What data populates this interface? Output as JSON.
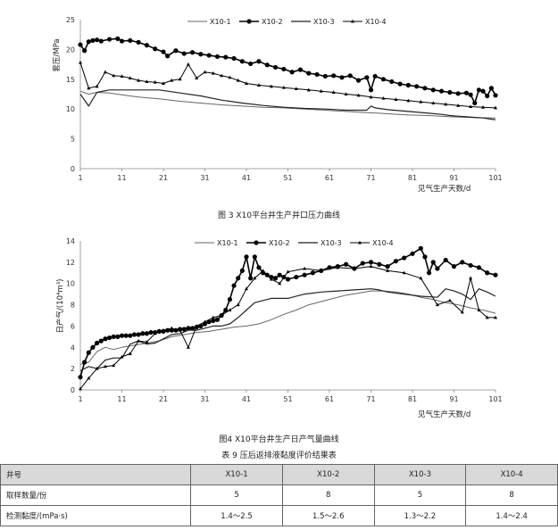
{
  "figure3": {
    "caption": "图 3 X10平台井生产井口压力曲线",
    "chart_data": {
      "type": "line",
      "ylabel": "套压/MPa",
      "xlabel": "见气生产天数/d",
      "ylim": [
        0,
        25
      ],
      "yticks": [
        0,
        5,
        10,
        15,
        20,
        25
      ],
      "xticks": [
        1,
        11,
        21,
        31,
        41,
        51,
        61,
        71,
        81,
        91,
        101
      ],
      "legend": [
        "X10-1",
        "X10-2",
        "X10-3",
        "X10-4"
      ],
      "series": [
        {
          "name": "X10-1",
          "marker": "none",
          "x": [
            1,
            3,
            5,
            8,
            11,
            15,
            20,
            25,
            30,
            35,
            40,
            45,
            50,
            55,
            60,
            65,
            70,
            73,
            75,
            80,
            85,
            90,
            95,
            101
          ],
          "values": [
            13,
            12.5,
            12.8,
            12.7,
            12.4,
            12,
            11.7,
            11.3,
            11,
            10.7,
            10.5,
            10.3,
            10.2,
            10,
            9.8,
            9.6,
            9.4,
            9.3,
            9.2,
            9,
            8.9,
            8.7,
            8.6,
            8.5
          ]
        },
        {
          "name": "X10-2",
          "marker": "circle",
          "x": [
            1,
            2,
            3,
            4,
            5,
            6,
            8,
            10,
            11,
            13,
            15,
            17,
            19,
            21,
            22,
            24,
            26,
            28,
            30,
            32,
            34,
            36,
            38,
            40,
            42,
            44,
            46,
            48,
            50,
            52,
            54,
            56,
            58,
            60,
            62,
            64,
            66,
            68,
            70,
            71,
            72,
            74,
            76,
            78,
            80,
            82,
            84,
            86,
            88,
            90,
            92,
            94,
            95,
            96,
            97,
            98,
            99,
            100,
            101
          ],
          "values": [
            20.8,
            19.8,
            21.3,
            21.5,
            21.6,
            21.4,
            21.7,
            21.8,
            21.4,
            21.5,
            21.2,
            20.7,
            20.1,
            19.6,
            18.9,
            19.8,
            19.3,
            19.5,
            19.2,
            19,
            18.8,
            18.7,
            18.5,
            18,
            17.6,
            18,
            17.4,
            17,
            16.7,
            16.2,
            16.6,
            16,
            15.8,
            15.5,
            15.6,
            15.3,
            15.6,
            14.8,
            15.3,
            13.2,
            15.5,
            15,
            14.6,
            14.2,
            14,
            13.8,
            13.5,
            13.2,
            13,
            12.8,
            12.6,
            12.7,
            12.4,
            11,
            13.2,
            13,
            12.2,
            13.5,
            12.3
          ]
        },
        {
          "name": "X10-3",
          "marker": "none",
          "x": [
            1,
            3,
            5,
            8,
            11,
            15,
            20,
            25,
            30,
            35,
            40,
            45,
            50,
            55,
            60,
            65,
            70,
            71,
            72,
            75,
            80,
            85,
            88,
            90,
            92,
            94,
            96,
            98,
            100,
            101
          ],
          "values": [
            12.5,
            10.5,
            12.8,
            13.2,
            13.2,
            13.2,
            13.2,
            12.7,
            12.2,
            11.5,
            11,
            10.6,
            10.3,
            10.1,
            10,
            9.8,
            9.8,
            10.5,
            10.2,
            9.9,
            9.6,
            9.3,
            9.1,
            8.9,
            8.8,
            8.7,
            8.6,
            8.5,
            8.3,
            8.2
          ]
        },
        {
          "name": "X10-4",
          "marker": "triangle",
          "x": [
            1,
            3,
            5,
            7,
            9,
            11,
            13,
            15,
            17,
            19,
            21,
            23,
            25,
            27,
            29,
            31,
            33,
            35,
            37,
            39,
            41,
            44,
            47,
            50,
            53,
            56,
            59,
            62,
            65,
            68,
            71,
            74,
            77,
            80,
            83,
            86,
            89,
            92,
            95,
            98,
            101
          ],
          "values": [
            17.8,
            13.5,
            13.8,
            16.2,
            15.6,
            15.5,
            15.2,
            14.8,
            14.6,
            14.5,
            14.3,
            14.8,
            15,
            17.5,
            15.2,
            16.2,
            16,
            15.6,
            15.3,
            14.8,
            14.3,
            14,
            13.8,
            13.6,
            13.4,
            13.2,
            13,
            12.8,
            12.5,
            12.3,
            12,
            11.8,
            11.6,
            11.4,
            11.2,
            11,
            10.8,
            10.6,
            10.4,
            10.3,
            10.2
          ]
        }
      ]
    }
  },
  "figure4": {
    "caption": "图4 X10平台井生产日产气量曲线",
    "chart_data": {
      "type": "line",
      "ylabel": "日产气/(10⁴m³)",
      "xlabel": "见气生产天数/d",
      "ylim": [
        0,
        14
      ],
      "yticks": [
        0,
        2,
        4,
        6,
        8,
        10,
        12,
        14
      ],
      "xticks": [
        1,
        11,
        21,
        31,
        41,
        51,
        61,
        71,
        81,
        91,
        101
      ],
      "legend": [
        "X10-1",
        "X10-2",
        "X10-3",
        "X10-4"
      ],
      "series": [
        {
          "name": "X10-1",
          "marker": "none",
          "x": [
            1,
            3,
            5,
            7,
            9,
            11,
            14,
            17,
            20,
            23,
            26,
            29,
            32,
            35,
            38,
            41,
            44,
            47,
            50,
            53,
            56,
            59,
            62,
            65,
            68,
            71,
            74,
            77,
            80,
            83,
            86,
            89,
            92,
            95,
            98,
            101
          ],
          "values": [
            2.4,
            2.6,
            3.6,
            4,
            3.8,
            4,
            4.2,
            4.4,
            4.6,
            5,
            5.2,
            5.4,
            5.5,
            5.7,
            5.9,
            6,
            6.2,
            6.6,
            7.1,
            7.5,
            8,
            8.3,
            8.6,
            8.9,
            9.1,
            9.3,
            9.3,
            9.2,
            9,
            8.7,
            8.5,
            8.2,
            8,
            7.7,
            7.5,
            7.2
          ]
        },
        {
          "name": "X10-2",
          "marker": "circle",
          "x": [
            1,
            2,
            3,
            4,
            5,
            6,
            7,
            8,
            9,
            10,
            11,
            12,
            13,
            14,
            15,
            16,
            17,
            18,
            19,
            20,
            21,
            22,
            23,
            24,
            25,
            26,
            27,
            28,
            29,
            30,
            31,
            32,
            33,
            34,
            35,
            36,
            37,
            38,
            39,
            40,
            41,
            42,
            43,
            44,
            45,
            46,
            47,
            48,
            49,
            50,
            51,
            53,
            55,
            57,
            59,
            61,
            63,
            65,
            67,
            69,
            71,
            73,
            75,
            77,
            79,
            81,
            83,
            84,
            85,
            86,
            87,
            89,
            91,
            93,
            95,
            97,
            99,
            101
          ],
          "values": [
            1.2,
            2.6,
            3.5,
            4,
            4.4,
            4.6,
            4.8,
            4.9,
            5,
            5,
            5.1,
            5.1,
            5.1,
            5.2,
            5.2,
            5.3,
            5.3,
            5.4,
            5.4,
            5.5,
            5.5,
            5.6,
            5.6,
            5.6,
            5.7,
            5.7,
            5.8,
            5.8,
            5.9,
            6,
            6.2,
            6.4,
            6.5,
            6.6,
            7,
            7.5,
            8.5,
            9.8,
            10.5,
            11.2,
            12.5,
            10.5,
            12.5,
            11.5,
            11,
            10.8,
            10.6,
            10.5,
            10.8,
            10.6,
            10.4,
            10.6,
            10.8,
            11,
            11.2,
            11.5,
            11.6,
            11.8,
            11.4,
            11.9,
            12,
            11.8,
            11.6,
            12.1,
            12.4,
            12.8,
            13.3,
            12.5,
            11,
            12,
            11.4,
            12.2,
            11.6,
            12,
            11.7,
            11.5,
            11,
            10.8
          ]
        },
        {
          "name": "X10-3",
          "marker": "none",
          "x": [
            1,
            3,
            5,
            7,
            9,
            11,
            13,
            15,
            17,
            19,
            21,
            23,
            25,
            27,
            29,
            31,
            33,
            35,
            37,
            39,
            41,
            43,
            45,
            47,
            49,
            51,
            55,
            59,
            63,
            67,
            71,
            73,
            75,
            79,
            83,
            87,
            89,
            91,
            93,
            95,
            97,
            99,
            101
          ],
          "values": [
            1.8,
            2.2,
            2,
            2.8,
            3,
            3,
            4.3,
            4.6,
            4.3,
            4.4,
            4.8,
            5.2,
            5.3,
            5.6,
            5.6,
            5.8,
            6,
            6,
            6.2,
            6.8,
            7.5,
            8.2,
            8.4,
            8.6,
            8.6,
            8.6,
            9,
            9.2,
            9.3,
            9.4,
            9.5,
            9.4,
            9.2,
            9,
            8.8,
            8.7,
            9.5,
            9.3,
            9,
            8.5,
            9.5,
            9.2,
            8.8
          ]
        },
        {
          "name": "X10-4",
          "marker": "triangle",
          "x": [
            1,
            3,
            5,
            7,
            9,
            11,
            13,
            15,
            17,
            19,
            21,
            23,
            25,
            27,
            29,
            31,
            33,
            35,
            37,
            39,
            41,
            43,
            45,
            47,
            49,
            51,
            55,
            59,
            63,
            67,
            71,
            75,
            79,
            83,
            87,
            90,
            93,
            95,
            97,
            99,
            101
          ],
          "values": [
            0.1,
            1.1,
            2,
            2.2,
            2.3,
            3.1,
            3.4,
            4.6,
            4.5,
            5.3,
            5.6,
            5.8,
            5.6,
            4,
            6,
            6.4,
            6.8,
            7,
            7.5,
            8,
            9.5,
            10.5,
            11.2,
            10.4,
            10,
            11.1,
            11.4,
            11.2,
            11.5,
            11.4,
            11.6,
            11.2,
            11,
            10.5,
            8,
            8.4,
            7.3,
            10.5,
            7.5,
            6.8,
            6.8
          ]
        }
      ]
    }
  },
  "table9": {
    "caption": "表 9 压后返排液黏度评价结果表",
    "headers": [
      "井号",
      "X10-1",
      "X10-2",
      "X10-3",
      "X10-4"
    ],
    "rows": [
      [
        "取样数量/份",
        "5",
        "8",
        "5",
        "8"
      ],
      [
        "检测黏度/(mPa·s)",
        "1.4～2.5",
        "1.5～2.6",
        "1.3～2.2",
        "1.4～2.4"
      ]
    ]
  }
}
